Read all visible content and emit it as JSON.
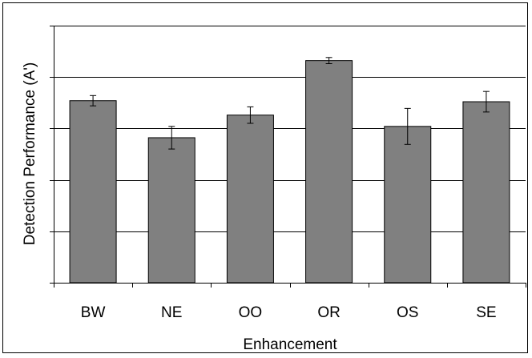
{
  "chart_data": {
    "type": "bar",
    "title": "",
    "xlabel": "Enhancement",
    "ylabel": "Detection Performance (A')",
    "categories": [
      "BW",
      "NE",
      "OO",
      "OR",
      "OS",
      "SE"
    ],
    "values": [
      0.804,
      0.732,
      0.776,
      0.882,
      0.754,
      0.802
    ],
    "error": [
      0.01,
      0.022,
      0.016,
      0.006,
      0.035,
      0.02
    ],
    "ylim": [
      0.45,
      0.95
    ],
    "ytick_step": 0.1,
    "ytick_labels_shown": false,
    "grid": true,
    "legend": "none",
    "bar_color": "#808080",
    "bar_edge_color": "#000000",
    "grid_color": "#000000"
  }
}
